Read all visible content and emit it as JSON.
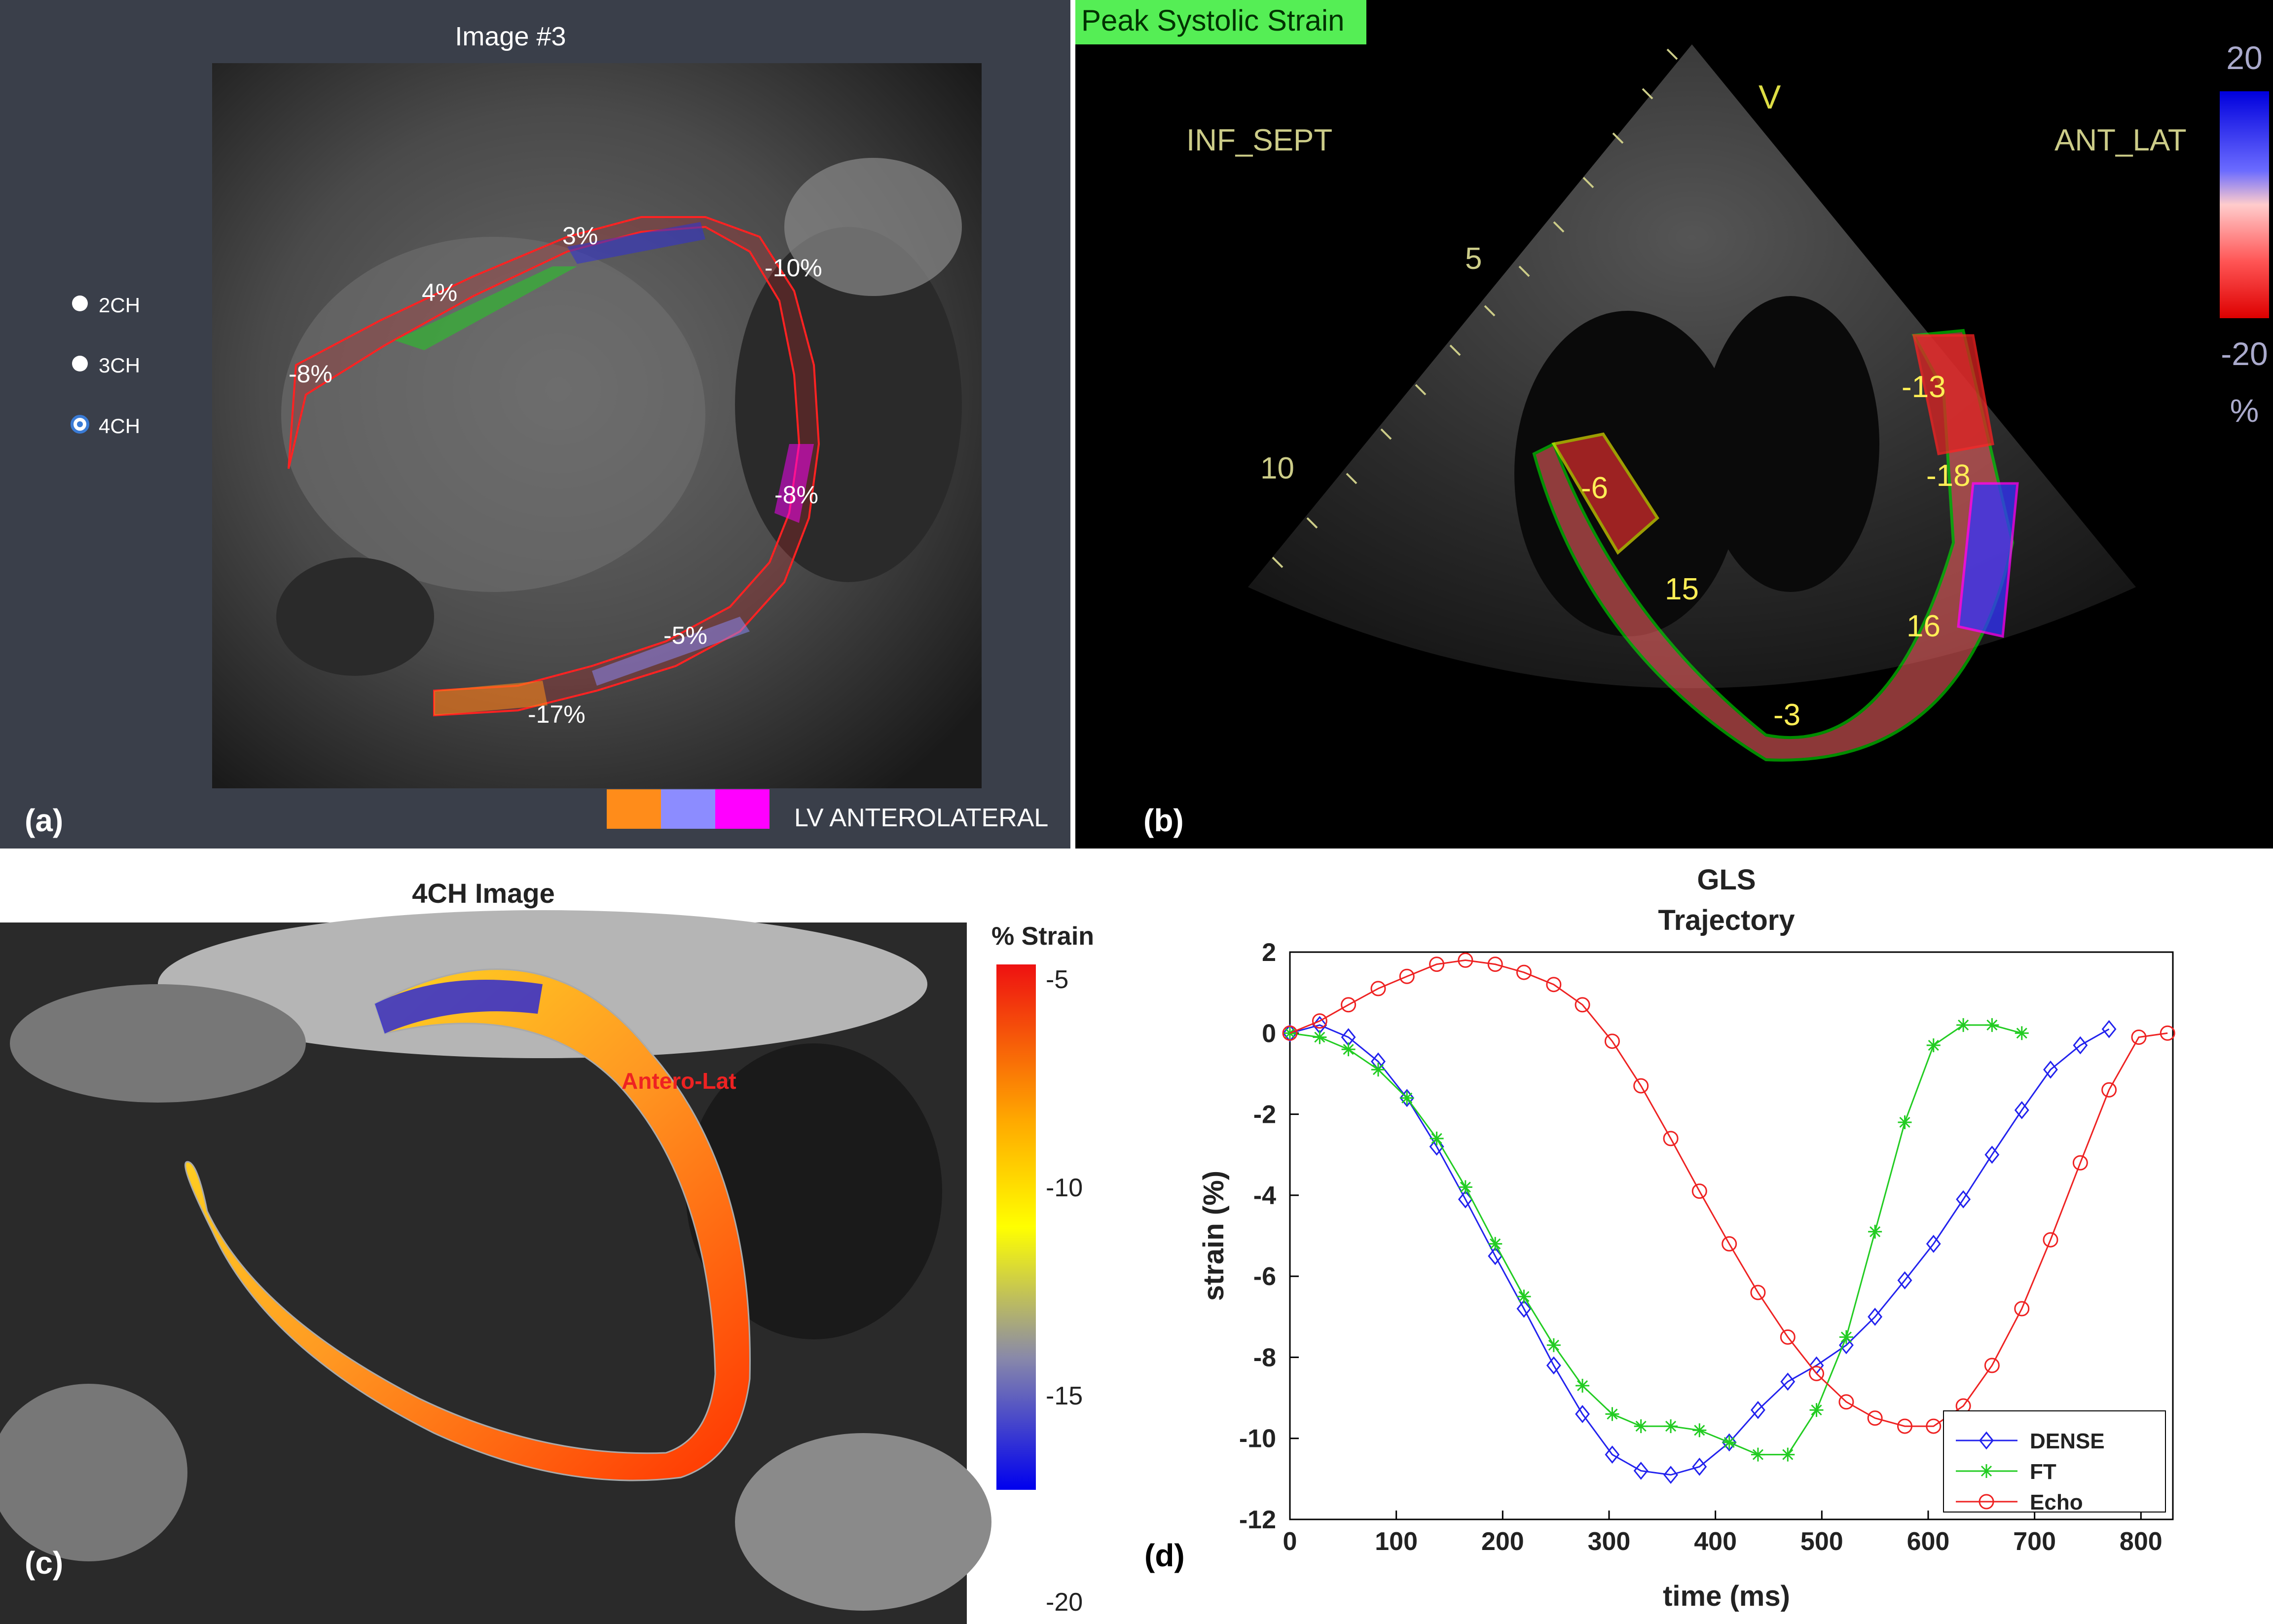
{
  "panel_a": {
    "panel_label": "(a)",
    "title": "Image #3",
    "radio_options": [
      {
        "label": "2CH",
        "selected": false
      },
      {
        "label": "3CH",
        "selected": false
      },
      {
        "label": "4CH",
        "selected": true
      }
    ],
    "segment_labels": [
      "-8%",
      "4%",
      "3%",
      "-10%",
      "-8%",
      "-5%",
      "-17%"
    ],
    "legend_label": "LV ANTEROLATERAL",
    "legend_colors": [
      "#ff8c1a",
      "#8c8cff",
      "#ff00ff"
    ]
  },
  "panel_b": {
    "panel_label": "(b)",
    "banner": "Peak Systolic Strain",
    "left_label": "INF_SEPT",
    "right_label": "ANT_LAT",
    "marker_v": "V",
    "depth_marks": [
      "5",
      "10"
    ],
    "segment_values": [
      "-6",
      "15",
      "-3",
      "16",
      "-18",
      "-13"
    ],
    "colorbar_top": "20",
    "colorbar_bottom": "-20",
    "colorbar_unit": "%"
  },
  "panel_c": {
    "panel_label": "(c)",
    "title": "4CH Image",
    "region_label": "Antero-Lat",
    "colorbar_title": "% Strain",
    "colorbar_ticks": [
      "-5",
      "-10",
      "-15",
      "-20"
    ]
  },
  "panel_d": {
    "panel_label": "(d)"
  },
  "chart_data": {
    "type": "line",
    "title": "GLS",
    "subtitle": "Trajectory",
    "xlabel": "time (ms)",
    "ylabel": "strain (%)",
    "xlim": [
      0,
      830
    ],
    "ylim": [
      -12,
      2
    ],
    "xticks": [
      0,
      100,
      200,
      300,
      400,
      500,
      600,
      700,
      800
    ],
    "yticks": [
      2,
      0,
      -2,
      -4,
      -6,
      -8,
      -10,
      -12
    ],
    "legend_position": "bottom-right",
    "series": [
      {
        "name": "DENSE",
        "color": "#2222ee",
        "marker": "diamond",
        "x": [
          0,
          28,
          55,
          83,
          110,
          138,
          165,
          193,
          220,
          248,
          275,
          303,
          330,
          358,
          385,
          413,
          440,
          468,
          495,
          523,
          550,
          578,
          605,
          633,
          660,
          688,
          715,
          743,
          770
        ],
        "y": [
          0,
          0.2,
          -0.1,
          -0.7,
          -1.6,
          -2.8,
          -4.1,
          -5.5,
          -6.8,
          -8.2,
          -9.4,
          -10.4,
          -10.8,
          -10.9,
          -10.7,
          -10.1,
          -9.3,
          -8.6,
          -8.2,
          -7.7,
          -7.0,
          -6.1,
          -5.2,
          -4.1,
          -3.0,
          -1.9,
          -0.9,
          -0.3,
          0.1
        ]
      },
      {
        "name": "FT",
        "color": "#22cc22",
        "marker": "star",
        "x": [
          0,
          28,
          55,
          83,
          110,
          138,
          165,
          193,
          220,
          248,
          275,
          303,
          330,
          358,
          385,
          413,
          440,
          468,
          495,
          523,
          550,
          578,
          605,
          633,
          660,
          688
        ],
        "y": [
          0,
          -0.1,
          -0.4,
          -0.9,
          -1.6,
          -2.6,
          -3.8,
          -5.2,
          -6.5,
          -7.7,
          -8.7,
          -9.4,
          -9.7,
          -9.7,
          -9.8,
          -10.1,
          -10.4,
          -10.4,
          -9.3,
          -7.5,
          -4.9,
          -2.2,
          -0.3,
          0.2,
          0.2,
          0.0
        ]
      },
      {
        "name": "Echo",
        "color": "#ee2222",
        "marker": "circle",
        "x": [
          0,
          28,
          55,
          83,
          110,
          138,
          165,
          193,
          220,
          248,
          275,
          303,
          330,
          358,
          385,
          413,
          440,
          468,
          495,
          523,
          550,
          578,
          605,
          633,
          660,
          688,
          715,
          743,
          770,
          798,
          825
        ],
        "y": [
          0,
          0.3,
          0.7,
          1.1,
          1.4,
          1.7,
          1.8,
          1.7,
          1.5,
          1.2,
          0.7,
          -0.2,
          -1.3,
          -2.6,
          -3.9,
          -5.2,
          -6.4,
          -7.5,
          -8.4,
          -9.1,
          -9.5,
          -9.7,
          -9.7,
          -9.2,
          -8.2,
          -6.8,
          -5.1,
          -3.2,
          -1.4,
          -0.1,
          0.0
        ]
      }
    ]
  }
}
